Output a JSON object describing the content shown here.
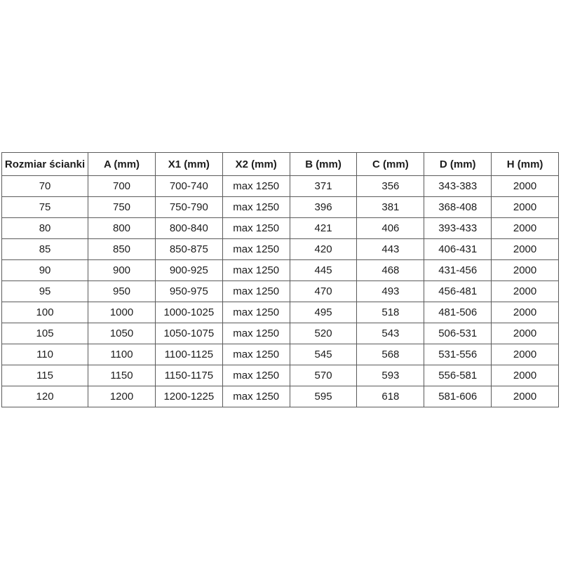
{
  "table": {
    "headers": [
      "Rozmiar ścianki",
      "A (mm)",
      "X1 (mm)",
      "X2 (mm)",
      "B (mm)",
      "C (mm)",
      "D (mm)",
      "H (mm)"
    ],
    "rows": [
      [
        "70",
        "700",
        "700-740",
        "max 1250",
        "371",
        "356",
        "343-383",
        "2000"
      ],
      [
        "75",
        "750",
        "750-790",
        "max 1250",
        "396",
        "381",
        "368-408",
        "2000"
      ],
      [
        "80",
        "800",
        "800-840",
        "max 1250",
        "421",
        "406",
        "393-433",
        "2000"
      ],
      [
        "85",
        "850",
        "850-875",
        "max 1250",
        "420",
        "443",
        "406-431",
        "2000"
      ],
      [
        "90",
        "900",
        "900-925",
        "max 1250",
        "445",
        "468",
        "431-456",
        "2000"
      ],
      [
        "95",
        "950",
        "950-975",
        "max 1250",
        "470",
        "493",
        "456-481",
        "2000"
      ],
      [
        "100",
        "1000",
        "1000-1025",
        "max 1250",
        "495",
        "518",
        "481-506",
        "2000"
      ],
      [
        "105",
        "1050",
        "1050-1075",
        "max 1250",
        "520",
        "543",
        "506-531",
        "2000"
      ],
      [
        "110",
        "1100",
        "1100-1125",
        "max 1250",
        "545",
        "568",
        "531-556",
        "2000"
      ],
      [
        "115",
        "1150",
        "1150-1175",
        "max 1250",
        "570",
        "593",
        "556-581",
        "2000"
      ],
      [
        "120",
        "1200",
        "1200-1225",
        "max 1250",
        "595",
        "618",
        "581-606",
        "2000"
      ]
    ]
  },
  "colors": {
    "border": "#5b5b5b",
    "text": "#1c1c1c",
    "background": "#ffffff"
  }
}
